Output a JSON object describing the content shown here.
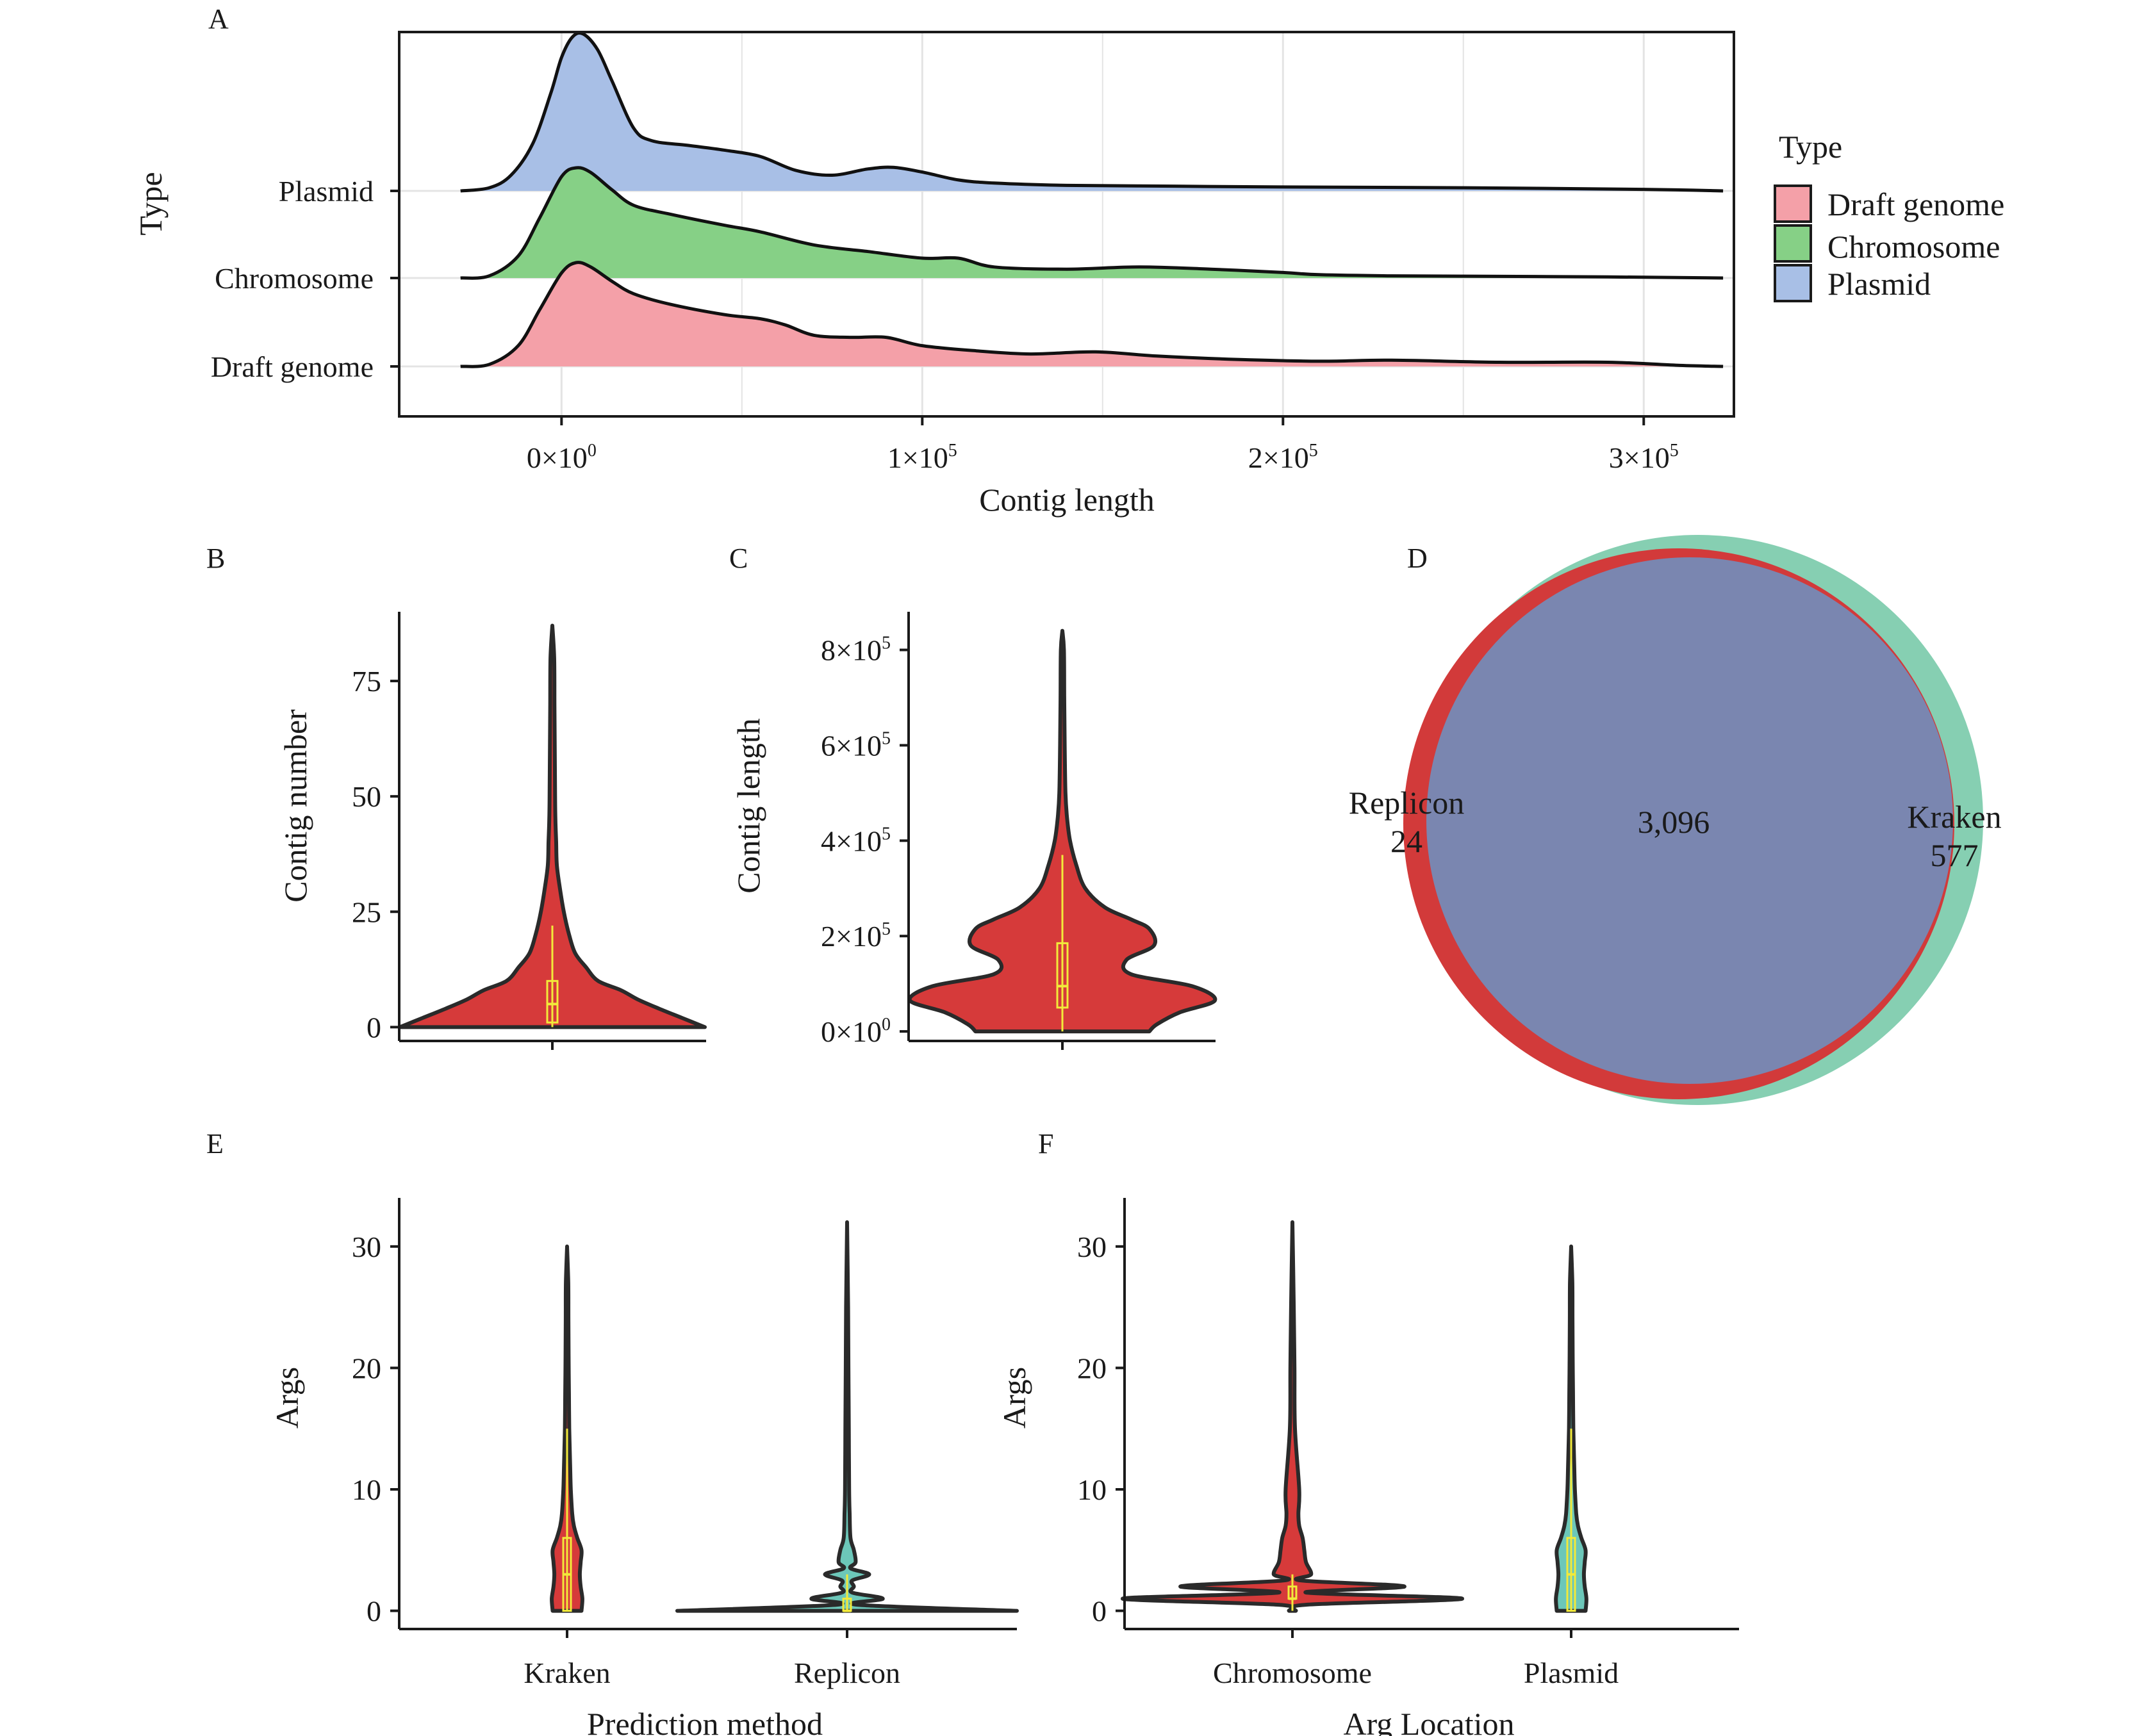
{
  "chart_data": [
    {
      "panel": "A",
      "type": "area",
      "xlabel": "Contig length",
      "ylabel": "Type",
      "xlim": [
        -45000,
        325000
      ],
      "x_ticks": [
        {
          "value": 0,
          "mant": "0",
          "exp": "0"
        },
        {
          "value": 100000,
          "mant": "1",
          "exp": "5"
        },
        {
          "value": 200000,
          "mant": "2",
          "exp": "5"
        },
        {
          "value": 300000,
          "mant": "3",
          "exp": "5"
        }
      ],
      "categories": [
        "Draft genome",
        "Chromosome",
        "Plasmid"
      ],
      "legend": {
        "title": "Type",
        "position": "right",
        "entries": [
          "Draft genome",
          "Chromosome",
          "Plasmid"
        ]
      },
      "grid": true,
      "series": [
        {
          "name": "Draft genome",
          "color": "#f4a0a8",
          "x": [
            -28000,
            -20000,
            -12000,
            -6000,
            0,
            4000,
            8000,
            14000,
            20000,
            30000,
            45000,
            55000,
            62000,
            70000,
            80000,
            90000,
            100000,
            115000,
            130000,
            148000,
            165000,
            185000,
            210000,
            230000,
            260000,
            290000,
            310000,
            322000
          ],
          "density": [
            0,
            0.02,
            0.2,
            0.55,
            0.9,
            1.0,
            0.96,
            0.82,
            0.7,
            0.6,
            0.5,
            0.46,
            0.4,
            0.3,
            0.28,
            0.28,
            0.2,
            0.15,
            0.12,
            0.14,
            0.1,
            0.07,
            0.05,
            0.06,
            0.04,
            0.04,
            0.01,
            0
          ]
        },
        {
          "name": "Chromosome",
          "color": "#86d086",
          "x": [
            -28000,
            -20000,
            -12000,
            -6000,
            0,
            4000,
            8000,
            14000,
            20000,
            30000,
            45000,
            55000,
            70000,
            85000,
            100000,
            110000,
            120000,
            140000,
            160000,
            180000,
            200000,
            210000,
            230000,
            260000,
            290000,
            322000
          ],
          "density": [
            0,
            0.02,
            0.2,
            0.55,
            0.92,
            1.0,
            0.96,
            0.8,
            0.66,
            0.58,
            0.48,
            0.42,
            0.3,
            0.24,
            0.18,
            0.18,
            0.1,
            0.08,
            0.1,
            0.08,
            0.05,
            0.03,
            0.02,
            0.015,
            0.01,
            0
          ]
        },
        {
          "name": "Plasmid",
          "color": "#a8bfe6",
          "x": [
            -28000,
            -20000,
            -14000,
            -8000,
            -3000,
            0,
            3000,
            6000,
            10000,
            14000,
            20000,
            25000,
            35000,
            45000,
            55000,
            65000,
            75000,
            85000,
            92000,
            100000,
            110000,
            120000,
            140000,
            170000,
            200000,
            250000,
            300000,
            322000
          ],
          "density": [
            0,
            0.02,
            0.1,
            0.3,
            0.62,
            0.85,
            0.98,
            1.0,
            0.9,
            0.7,
            0.4,
            0.32,
            0.29,
            0.26,
            0.22,
            0.13,
            0.1,
            0.14,
            0.15,
            0.12,
            0.07,
            0.05,
            0.035,
            0.03,
            0.025,
            0.02,
            0.01,
            0
          ]
        }
      ]
    },
    {
      "panel": "B",
      "type": "violin",
      "ylabel": "Contig number",
      "ylim": [
        -3,
        90
      ],
      "y_ticks": [
        0,
        25,
        50,
        75
      ],
      "color": "#d63a3a",
      "box": {
        "q1": 1,
        "median": 5,
        "q3": 10,
        "whisker_low": 0,
        "whisker_high": 22
      },
      "profile": {
        "y": [
          0,
          2,
          4,
          6,
          8,
          10,
          13,
          16,
          20,
          25,
          30,
          35,
          40,
          45,
          50,
          60,
          70,
          80,
          87
        ],
        "half_width": [
          1.0,
          0.85,
          0.7,
          0.56,
          0.45,
          0.3,
          0.22,
          0.15,
          0.11,
          0.075,
          0.05,
          0.03,
          0.025,
          0.02,
          0.018,
          0.016,
          0.014,
          0.012,
          0
        ]
      }
    },
    {
      "panel": "C",
      "type": "violin",
      "ylabel": "Contig length",
      "ylim": [
        -20000,
        880000
      ],
      "y_ticks": [
        {
          "value": 0,
          "mant": "0",
          "exp": "0"
        },
        {
          "value": 200000,
          "mant": "2",
          "exp": "5"
        },
        {
          "value": 400000,
          "mant": "4",
          "exp": "5"
        },
        {
          "value": 600000,
          "mant": "6",
          "exp": "5"
        },
        {
          "value": 800000,
          "mant": "8",
          "exp": "5"
        }
      ],
      "color": "#d63a3a",
      "box": {
        "q1": 50000,
        "median": 95000,
        "q3": 185000,
        "whisker_low": 0,
        "whisker_high": 370000
      },
      "profile": {
        "y": [
          0,
          15000,
          40000,
          65000,
          95000,
          120000,
          150000,
          180000,
          215000,
          235000,
          260000,
          300000,
          350000,
          400000,
          450000,
          500000,
          600000,
          700000,
          800000,
          840000
        ],
        "half_width": [
          0.57,
          0.62,
          0.77,
          1.0,
          0.85,
          0.45,
          0.42,
          0.6,
          0.57,
          0.45,
          0.28,
          0.15,
          0.09,
          0.05,
          0.03,
          0.02,
          0.015,
          0.012,
          0.01,
          0
        ]
      }
    },
    {
      "panel": "D",
      "type": "venn",
      "sets": [
        {
          "name": "Replicon",
          "only": "24",
          "color": "#d23a3a"
        },
        {
          "name": "Kraken",
          "only": "577",
          "color": "#86cfb2"
        }
      ],
      "intersection": "3,096",
      "intersection_color": "#7a86b0"
    },
    {
      "panel": "E",
      "type": "violin",
      "xlabel": "Prediction method",
      "ylabel": "Args",
      "ylim": [
        -1.5,
        34
      ],
      "y_ticks": [
        0,
        10,
        20,
        30
      ],
      "categories": [
        "Kraken",
        "Replicon"
      ],
      "violins": [
        {
          "category": "Kraken",
          "color": "#d63a3a",
          "box": {
            "q1": 0,
            "median": 3,
            "q3": 6,
            "whisker_low": 0,
            "whisker_high": 15
          },
          "profile": {
            "y": [
              0,
              1,
              2,
              3,
              4,
              5,
              6,
              7,
              8,
              10,
              12,
              15,
              18,
              21,
              24,
              27,
              30
            ],
            "half_width": [
              0.085,
              0.09,
              0.08,
              0.075,
              0.08,
              0.085,
              0.06,
              0.04,
              0.03,
              0.022,
              0.018,
              0.013,
              0.011,
              0.009,
              0.008,
              0.007,
              0
            ]
          }
        },
        {
          "category": "Replicon",
          "color": "#6cc7b9",
          "box": {
            "q1": 0,
            "median": 0,
            "q3": 1,
            "whisker_low": 0,
            "whisker_high": 3
          },
          "profile": {
            "y": [
              0,
              0.5,
              1,
              1.5,
              2,
              2.5,
              3,
              3.5,
              4,
              5,
              6,
              8,
              10,
              15,
              20,
              25,
              32
            ],
            "half_width": [
              1.0,
              0.06,
              0.21,
              0.03,
              0.04,
              0.03,
              0.13,
              0.02,
              0.05,
              0.04,
              0.02,
              0.015,
              0.012,
              0.01,
              0.008,
              0.006,
              0
            ]
          }
        }
      ]
    },
    {
      "panel": "F",
      "type": "violin",
      "xlabel": "Arg Location",
      "ylabel": "Args",
      "ylim": [
        -1.5,
        34
      ],
      "y_ticks": [
        0,
        10,
        20,
        30
      ],
      "categories": [
        "Chromosome",
        "Plasmid"
      ],
      "violins": [
        {
          "category": "Chromosome",
          "color": "#d63a3a",
          "box": {
            "q1": 1,
            "median": 1,
            "q3": 2,
            "whisker_low": 0,
            "whisker_high": 3
          },
          "profile": {
            "y": [
              0,
              0.5,
              1,
              1.5,
              2,
              2.5,
              3,
              4,
              5,
              6,
              7,
              8,
              10,
              15,
              20,
              25,
              32
            ],
            "half_width": [
              0.02,
              0.08,
              1.0,
              0.08,
              0.66,
              0.05,
              0.11,
              0.08,
              0.07,
              0.06,
              0.04,
              0.035,
              0.04,
              0.015,
              0.012,
              0.008,
              0
            ]
          }
        },
        {
          "category": "Plasmid",
          "color": "#6cc7b9",
          "box": {
            "q1": 0,
            "median": 3,
            "q3": 6,
            "whisker_low": 0,
            "whisker_high": 15
          },
          "profile": {
            "y": [
              0,
              1,
              2,
              3,
              4,
              5,
              6,
              7,
              8,
              10,
              12,
              15,
              18,
              21,
              24,
              27,
              30
            ],
            "half_width": [
              0.085,
              0.09,
              0.08,
              0.075,
              0.08,
              0.085,
              0.06,
              0.04,
              0.03,
              0.022,
              0.018,
              0.013,
              0.011,
              0.009,
              0.008,
              0.007,
              0
            ]
          }
        }
      ]
    }
  ]
}
